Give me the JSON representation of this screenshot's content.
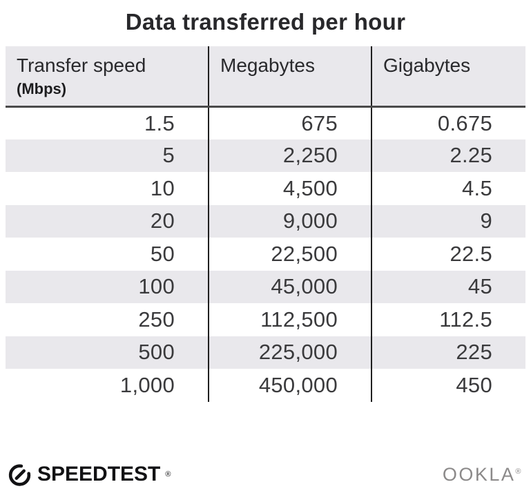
{
  "title": "Data transferred per hour",
  "chart_data": {
    "type": "table",
    "title": "Data transferred per hour",
    "columns": [
      "Transfer speed (Mbps)",
      "Megabytes",
      "Gigabytes"
    ],
    "rows": [
      [
        1.5,
        675,
        0.675
      ],
      [
        5,
        2250,
        2.25
      ],
      [
        10,
        4500,
        4.5
      ],
      [
        20,
        9000,
        9
      ],
      [
        50,
        22500,
        22.5
      ],
      [
        100,
        45000,
        45
      ],
      [
        250,
        112500,
        112.5
      ],
      [
        500,
        225000,
        225
      ],
      [
        1000,
        450000,
        450
      ]
    ]
  },
  "table": {
    "columns": [
      {
        "key": "transfer-speed",
        "label": "Transfer speed",
        "sublabel": "(Mbps)"
      },
      {
        "key": "megabytes",
        "label": "Megabytes",
        "sublabel": ""
      },
      {
        "key": "gigabytes",
        "label": "Gigabytes",
        "sublabel": ""
      }
    ],
    "rows": [
      [
        "1.5",
        "675",
        "0.675"
      ],
      [
        "5",
        "2,250",
        "2.25"
      ],
      [
        "10",
        "4,500",
        "4.5"
      ],
      [
        "20",
        "9,000",
        "9"
      ],
      [
        "50",
        "22,500",
        "22.5"
      ],
      [
        "100",
        "45,000",
        "45"
      ],
      [
        "250",
        "112,500",
        "112.5"
      ],
      [
        "500",
        "225,000",
        "225"
      ],
      [
        "1,000",
        "450,000",
        "450"
      ]
    ]
  },
  "footer": {
    "speedtest_label": "SPEEDTEST",
    "speedtest_mark": "®",
    "ookla_label": "OOKLA",
    "ookla_mark": "®"
  },
  "colors": {
    "header-bg": "#e9e8ec",
    "stripe": "#e9e8ec",
    "header-rule": "#4a4a4a",
    "divider": "#1f1f1f",
    "title-text": "#28282b",
    "cell-text": "#3a3a3c",
    "ookla-gray": "#8b8989"
  }
}
